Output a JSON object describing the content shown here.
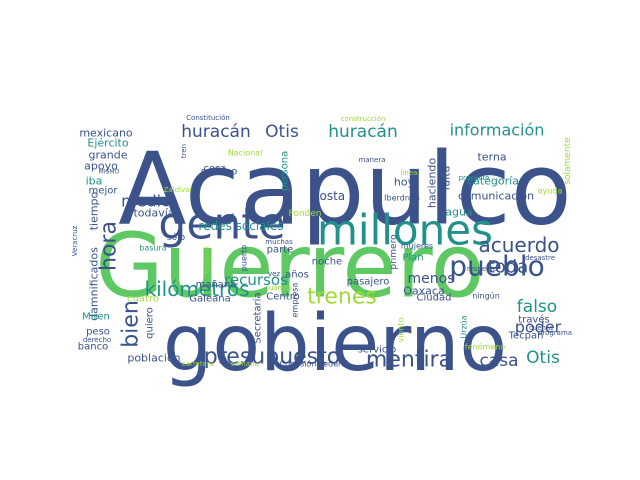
{
  "wordcloud": {
    "words": [
      {
        "text": "Acapulco",
        "color": "#3b528b"
      },
      {
        "text": "Guerrero",
        "color": "#5ec962"
      },
      {
        "text": "gobierno",
        "color": "#3b528b"
      },
      {
        "text": "millones",
        "color": "#21918c"
      },
      {
        "text": "gente",
        "color": "#3b528b"
      },
      {
        "text": "pueblo",
        "color": "#3b528b"
      },
      {
        "text": "presupuesto",
        "color": "#3b528b"
      },
      {
        "text": "trenes",
        "color": "#a0da39"
      },
      {
        "text": "mentira",
        "color": "#3b528b"
      },
      {
        "text": "kilómetros",
        "color": "#21918c"
      },
      {
        "text": "acuerdo",
        "color": "#3b528b"
      },
      {
        "text": "huracán",
        "color": "#3b528b"
      },
      {
        "text": "huracán",
        "color": "#21918c"
      },
      {
        "text": "Otis",
        "color": "#3b528b"
      },
      {
        "text": "Otis",
        "color": "#21918c"
      },
      {
        "text": "información",
        "color": "#21918c"
      },
      {
        "text": "medio",
        "color": "#3b528b"
      },
      {
        "text": "hora",
        "color": "#3b528b"
      },
      {
        "text": "bien",
        "color": "#3b528b"
      },
      {
        "text": "recursos",
        "color": "#21918c"
      },
      {
        "text": "falso",
        "color": "#21918c"
      },
      {
        "text": "poder",
        "color": "#3b528b"
      },
      {
        "text": "casa",
        "color": "#3b528b"
      },
      {
        "text": "toda",
        "color": "#3b528b"
      },
      {
        "text": "menos",
        "color": "#3b528b"
      },
      {
        "text": "redes sociales",
        "color": "#21918c"
      },
      {
        "text": "costa",
        "color": "#3b528b"
      },
      {
        "text": "comunicación",
        "color": "#3b528b"
      },
      {
        "text": "categoría",
        "color": "#21918c"
      },
      {
        "text": "agua",
        "color": "#21918c"
      },
      {
        "text": "falta",
        "color": "#3b528b"
      },
      {
        "text": "hoy",
        "color": "#3b528b"
      },
      {
        "text": "haciendo",
        "color": "#3b528b"
      },
      {
        "text": "terna",
        "color": "#3b528b"
      },
      {
        "text": "mexicano",
        "color": "#3b528b"
      },
      {
        "text": "Ejército",
        "color": "#21918c"
      },
      {
        "text": "grande",
        "color": "#3b528b"
      },
      {
        "text": "apoyo",
        "color": "#3b528b"
      },
      {
        "text": "iba",
        "color": "#21918c"
      },
      {
        "text": "mejor",
        "color": "#3b528b"
      },
      {
        "text": "tiempo",
        "color": "#3b528b"
      },
      {
        "text": "todavía",
        "color": "#3b528b"
      },
      {
        "text": "damnificados",
        "color": "#3b528b"
      },
      {
        "text": "cuatro",
        "color": "#a0da39"
      },
      {
        "text": "Galeana",
        "color": "#3b528b"
      },
      {
        "text": "mañana",
        "color": "#3b528b"
      },
      {
        "text": "quiero",
        "color": "#3b528b"
      },
      {
        "text": "peso",
        "color": "#3b528b"
      },
      {
        "text": "banco",
        "color": "#3b528b"
      },
      {
        "text": "población",
        "color": "#3b528b"
      },
      {
        "text": "Miren",
        "color": "#21918c"
      },
      {
        "text": "servicio",
        "color": "#3b528b"
      },
      {
        "text": "pasajero",
        "color": "#3b528b"
      },
      {
        "text": "Oaxaca",
        "color": "#3b528b"
      },
      {
        "text": "Ciudad",
        "color": "#3b528b"
      },
      {
        "text": "Centro",
        "color": "#3b528b"
      },
      {
        "text": "Secretaría",
        "color": "#3b528b"
      },
      {
        "text": "parte",
        "color": "#3b528b"
      },
      {
        "text": "noche",
        "color": "#3b528b"
      },
      {
        "text": "años",
        "color": "#3b528b"
      },
      {
        "text": "Plan",
        "color": "#21918c"
      },
      {
        "text": "Tecpan",
        "color": "#3b528b"
      },
      {
        "text": "través",
        "color": "#3b528b"
      },
      {
        "text": "Comisión Federal",
        "color": "#3b528b"
      },
      {
        "text": "camino",
        "color": "#3b528b"
      },
      {
        "text": "cosa",
        "color": "#3b528b"
      },
      {
        "text": "persona",
        "color": "#21918c"
      },
      {
        "text": "Nacional",
        "color": "#a0da39"
      },
      {
        "text": "Fonden",
        "color": "#a0da39"
      },
      {
        "text": "Constitución",
        "color": "#3b528b"
      },
      {
        "text": "construcción",
        "color": "#a0da39"
      },
      {
        "text": "tren",
        "color": "#3b528b"
      },
      {
        "text": "MISMO",
        "color": "#3b528b"
      },
      {
        "text": "Zaldívar",
        "color": "#a0da39"
      },
      {
        "text": "Veracruz",
        "color": "#3b528b"
      },
      {
        "text": "sólo",
        "color": "#3b528b"
      },
      {
        "text": "basura",
        "color": "#21918c"
      },
      {
        "text": "hospital",
        "color": "#a0da39"
      },
      {
        "text": "puerto",
        "color": "#3b528b"
      },
      {
        "text": "empresa",
        "color": "#3b528b"
      },
      {
        "text": "muchas",
        "color": "#3b528b"
      },
      {
        "text": "vez",
        "color": "#3b528b"
      },
      {
        "text": "Juanito",
        "color": "#a0da39"
      },
      {
        "text": "primero",
        "color": "#3b528b"
      },
      {
        "text": "proyecto",
        "color": "#21918c"
      },
      {
        "text": "mujeres",
        "color": "#3b528b"
      },
      {
        "text": "respecto",
        "color": "#3b528b"
      },
      {
        "text": "desastre",
        "color": "#3b528b"
      },
      {
        "text": "ningún",
        "color": "#3b528b"
      },
      {
        "text": "viento",
        "color": "#a0da39"
      },
      {
        "text": "Urzúa",
        "color": "#21918c"
      },
      {
        "text": "fenómeno",
        "color": "#a0da39"
      },
      {
        "text": "cuenta",
        "color": "#3b528b"
      },
      {
        "text": "programa",
        "color": "#3b528b"
      },
      {
        "text": "derecho",
        "color": "#3b528b"
      },
      {
        "text": "carretera",
        "color": "#a0da39"
      },
      {
        "text": "semana",
        "color": "#a0da39"
      },
      {
        "text": "Iberdrola",
        "color": "#3b528b"
      },
      {
        "text": "línea",
        "color": "#a0da39"
      },
      {
        "text": "manera",
        "color": "#3b528b"
      },
      {
        "text": "solamente",
        "color": "#a0da39"
      },
      {
        "text": "ayuda",
        "color": "#a0da39"
      }
    ]
  }
}
